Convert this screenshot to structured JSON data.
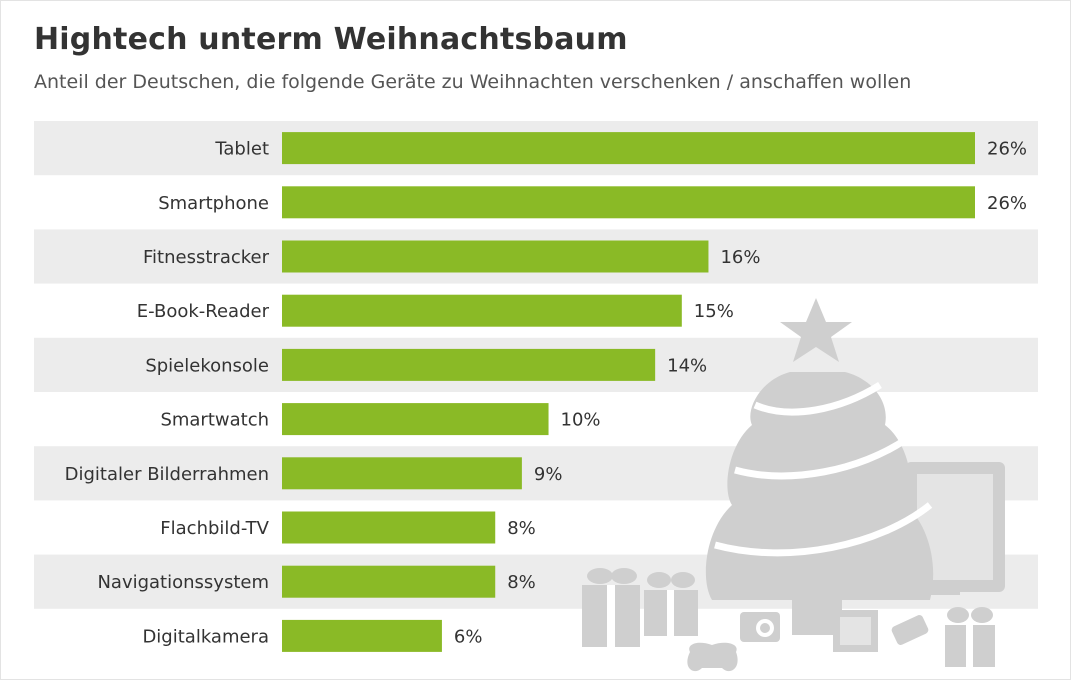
{
  "chart_data": {
    "type": "bar",
    "orientation": "horizontal",
    "title": "Hightech unterm Weihnachtsbaum",
    "subtitle": "Anteil der Deutschen, die folgende Geräte zu Weihnachten verschenken / anschaffen wollen",
    "categories": [
      "Tablet",
      "Smartphone",
      "Fitnesstracker",
      "E-Book-Reader",
      "Spielekonsole",
      "Smartwatch",
      "Digitaler Bilderrahmen",
      "Flachbild-TV",
      "Navigationssystem",
      "Digitalkamera"
    ],
    "values": [
      26,
      26,
      16,
      15,
      14,
      10,
      9,
      8,
      8,
      6
    ],
    "value_labels": [
      "26%",
      "26%",
      "16%",
      "15%",
      "14%",
      "10%",
      "9%",
      "8%",
      "8%",
      "6%"
    ],
    "unit": "%",
    "xlim": [
      0,
      26
    ],
    "grid": false,
    "legend": "none",
    "bar_color": "#8aba26",
    "stripe_color": "#ececec",
    "decoration_color": "#cfcfcf"
  }
}
